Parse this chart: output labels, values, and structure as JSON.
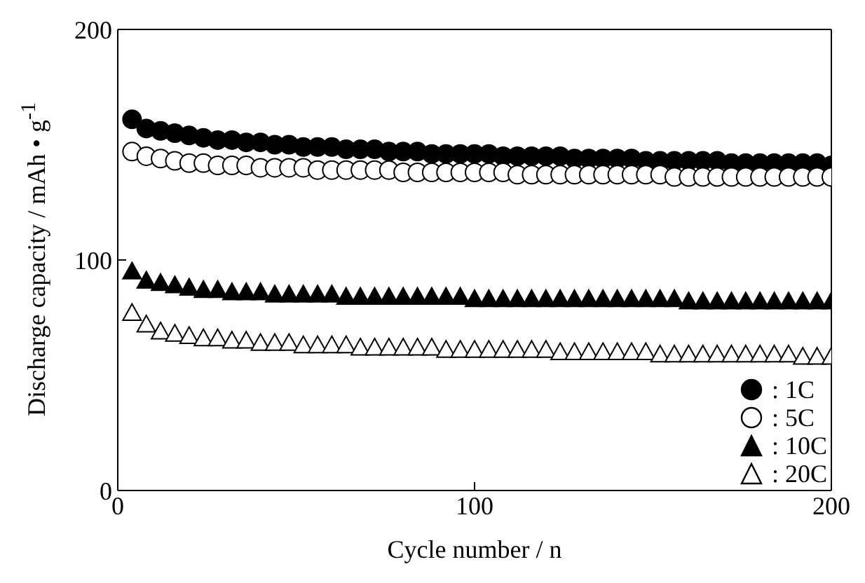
{
  "chart_data": {
    "type": "scatter",
    "xlabel": "Cycle number  / n",
    "ylabel": "Discharge capacity / mAh • g$^{-1}$",
    "x": [
      4,
      8,
      12,
      16,
      20,
      24,
      28,
      32,
      36,
      40,
      44,
      48,
      52,
      56,
      60,
      64,
      68,
      72,
      76,
      80,
      84,
      88,
      92,
      96,
      100,
      104,
      108,
      112,
      116,
      120,
      124,
      128,
      132,
      136,
      140,
      144,
      148,
      152,
      156,
      160,
      164,
      168,
      172,
      176,
      180,
      184,
      188,
      192,
      196,
      200
    ],
    "xlim": [
      0,
      200
    ],
    "xticks": [
      0,
      100,
      200
    ],
    "ylim": [
      0,
      200
    ],
    "yticks": [
      0,
      100,
      200
    ],
    "grid": false,
    "legend": "bottom right",
    "series": [
      {
        "name": ": 1C",
        "color": "#000000",
        "marker": "circle",
        "values": [
          161,
          157,
          156,
          155,
          154,
          153,
          152,
          152,
          151,
          151,
          150,
          150,
          149,
          149,
          149,
          148,
          148,
          148,
          147,
          147,
          147,
          146,
          146,
          146,
          146,
          146,
          145,
          145,
          145,
          145,
          145,
          144,
          144,
          144,
          144,
          144,
          143,
          143,
          143,
          143,
          143,
          143,
          142,
          142,
          142,
          142,
          142,
          142,
          142,
          141
        ]
      },
      {
        "name": ": 5C",
        "color": "#ffffff",
        "marker": "circle",
        "values": [
          147,
          145,
          144,
          143,
          142,
          142,
          141,
          141,
          141,
          140,
          140,
          140,
          140,
          139,
          139,
          139,
          139,
          139,
          139,
          138,
          138,
          138,
          138,
          138,
          138,
          138,
          138,
          137,
          137,
          137,
          137,
          137,
          137,
          137,
          137,
          137,
          137,
          137,
          136,
          136,
          136,
          136,
          136,
          136,
          136,
          136,
          136,
          136,
          136,
          136
        ]
      },
      {
        "name": ": 10C",
        "color": "#000000",
        "marker": "triangle",
        "values": [
          95,
          91,
          90,
          89,
          88,
          87,
          87,
          86,
          86,
          86,
          85,
          85,
          85,
          85,
          85,
          84,
          84,
          84,
          84,
          84,
          84,
          84,
          84,
          84,
          83,
          83,
          83,
          83,
          83,
          83,
          83,
          83,
          83,
          83,
          83,
          83,
          83,
          83,
          83,
          82,
          82,
          82,
          82,
          82,
          82,
          82,
          82,
          82,
          82,
          82
        ]
      },
      {
        "name": ": 20C",
        "color": "#ffffff",
        "marker": "triangle",
        "values": [
          77,
          72,
          69,
          68,
          67,
          66,
          66,
          65,
          65,
          64,
          64,
          64,
          63,
          63,
          63,
          63,
          62,
          62,
          62,
          62,
          62,
          62,
          61,
          61,
          61,
          61,
          61,
          61,
          61,
          61,
          60,
          60,
          60,
          60,
          60,
          60,
          60,
          59,
          59,
          59,
          59,
          59,
          59,
          59,
          59,
          59,
          59,
          58,
          58,
          58
        ]
      }
    ]
  }
}
